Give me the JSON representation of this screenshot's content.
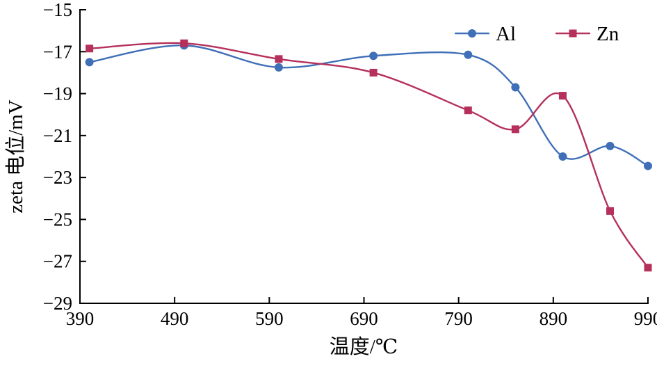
{
  "chart_data": {
    "type": "line",
    "title": "",
    "xlabel": "温度/℃",
    "ylabel": "zeta 电位/mV",
    "x": [
      400,
      500,
      600,
      700,
      800,
      850,
      900,
      950,
      990
    ],
    "series": [
      {
        "name": "Al",
        "color": "#3f6fb7",
        "marker": "circle",
        "values": [
          -17.5,
          -16.7,
          -17.75,
          -17.2,
          -17.15,
          -18.7,
          -22.0,
          -21.5,
          -22.45
        ]
      },
      {
        "name": "Zn",
        "color": "#b5305a",
        "marker": "square",
        "values": [
          -16.85,
          -16.6,
          -17.35,
          -18.0,
          -19.8,
          -20.7,
          -19.1,
          -24.6,
          -27.3
        ]
      }
    ],
    "xticks": [
      390,
      490,
      590,
      690,
      790,
      890,
      990
    ],
    "yticks": [
      -15,
      -17,
      -19,
      -21,
      -23,
      -25,
      -27,
      -29
    ],
    "xlim": [
      390,
      990
    ],
    "ylim": [
      -29,
      -15
    ],
    "legend_position": "top-right",
    "grid": false,
    "axis_color": "#000000"
  }
}
